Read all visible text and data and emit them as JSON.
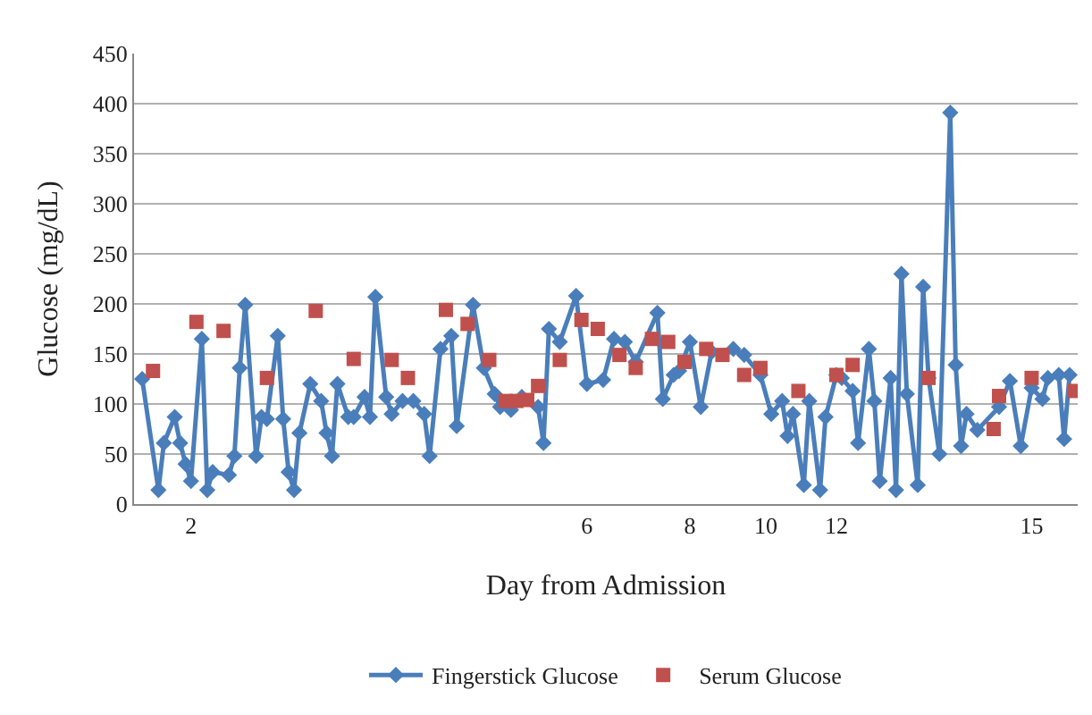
{
  "chart_data": {
    "type": "line",
    "xlabel": "Day from Admission",
    "ylabel": "Glucose (mg/dL)",
    "categories": [
      null,
      null,
      null,
      null,
      null,
      null,
      null,
      null,
      null,
      null,
      "2",
      null,
      null,
      null,
      null,
      null,
      null,
      null,
      null,
      null,
      null,
      null,
      null,
      null,
      null,
      null,
      null,
      null,
      null,
      null,
      null,
      null,
      null,
      null,
      null,
      null,
      null,
      null,
      null,
      null,
      null,
      null,
      null,
      null,
      null,
      null,
      null,
      null,
      null,
      null,
      null,
      null,
      null,
      null,
      null,
      null,
      null,
      null,
      null,
      null,
      null,
      null,
      null,
      null,
      null,
      null,
      null,
      null,
      null,
      null,
      null,
      null,
      null,
      null,
      null,
      null,
      null,
      null,
      null,
      null,
      null,
      null,
      null,
      "6",
      null,
      null,
      null,
      null,
      null,
      null,
      null,
      null,
      null,
      null,
      null,
      null,
      null,
      null,
      null,
      null,
      null,
      null,
      "8",
      null,
      null,
      null,
      null,
      null,
      null,
      null,
      null,
      null,
      null,
      null,
      null,
      null,
      "10",
      null,
      null,
      null,
      null,
      null,
      null,
      null,
      null,
      null,
      null,
      null,
      null,
      "12",
      null,
      null,
      null,
      null,
      null,
      null,
      null,
      null,
      null,
      null,
      null,
      null,
      null,
      null,
      null,
      null,
      null,
      null,
      null,
      null,
      null,
      null,
      null,
      null,
      null,
      null,
      null,
      null,
      null,
      null,
      null,
      null,
      null,
      null,
      null,
      "15",
      null,
      null,
      null,
      null,
      null,
      null,
      null,
      null
    ],
    "series": [
      {
        "name": "Fingerstick Glucose",
        "color": "#4a7ebb",
        "marker": "diamond",
        "values": [
          null,
          125,
          null,
          null,
          14,
          61,
          null,
          87,
          61,
          40,
          23,
          null,
          165,
          14,
          32,
          null,
          null,
          29,
          48,
          136,
          199,
          null,
          48,
          87,
          85,
          null,
          168,
          85,
          32,
          14,
          71,
          null,
          120,
          null,
          103,
          71,
          48,
          120,
          null,
          87,
          87,
          null,
          107,
          87,
          207,
          null,
          107,
          90,
          null,
          103,
          null,
          103,
          null,
          90,
          48,
          null,
          155,
          null,
          168,
          78,
          null,
          null,
          199,
          null,
          136,
          null,
          110,
          97,
          null,
          94,
          null,
          107,
          null,
          null,
          97,
          61,
          175,
          null,
          162,
          null,
          null,
          208,
          null,
          120,
          null,
          null,
          124,
          null,
          165,
          null,
          162,
          null,
          142,
          null,
          null,
          null,
          191,
          105,
          null,
          129,
          133,
          null,
          162,
          null,
          97,
          null,
          152,
          null,
          null,
          null,
          155,
          null,
          149,
          null,
          null,
          129,
          null,
          90,
          null,
          103,
          68,
          90,
          null,
          19,
          103,
          null,
          14,
          87,
          null,
          129,
          126,
          null,
          113,
          61,
          null,
          155,
          103,
          23,
          null,
          126,
          14,
          230,
          110,
          null,
          19,
          217,
          126,
          null,
          50,
          null,
          391,
          139,
          58,
          90,
          null,
          74,
          null,
          null,
          null,
          97,
          null,
          123,
          null,
          58,
          null,
          116,
          null,
          105,
          126,
          null,
          129,
          65,
          129,
          null
        ]
      },
      {
        "name": "Serum Glucose",
        "type": "scatter",
        "color": "#c0504d",
        "marker": "square",
        "values": [
          null,
          null,
          null,
          133,
          null,
          null,
          null,
          null,
          null,
          null,
          null,
          182,
          null,
          null,
          null,
          null,
          173,
          null,
          null,
          null,
          null,
          null,
          null,
          null,
          126,
          null,
          null,
          null,
          null,
          null,
          null,
          null,
          null,
          193,
          null,
          null,
          null,
          null,
          null,
          null,
          145,
          null,
          null,
          null,
          null,
          null,
          null,
          144,
          null,
          null,
          126,
          null,
          null,
          null,
          null,
          null,
          null,
          194,
          null,
          null,
          null,
          180,
          null,
          null,
          null,
          144,
          null,
          null,
          103,
          null,
          103,
          null,
          104,
          null,
          118,
          null,
          null,
          null,
          144,
          null,
          null,
          null,
          184,
          null,
          null,
          175,
          null,
          null,
          null,
          149,
          null,
          null,
          136,
          null,
          null,
          165,
          null,
          null,
          162,
          null,
          null,
          142,
          null,
          null,
          null,
          155,
          null,
          null,
          149,
          null,
          null,
          null,
          129,
          null,
          null,
          136,
          null,
          null,
          null,
          null,
          null,
          null,
          113,
          null,
          null,
          null,
          null,
          null,
          null,
          129,
          null,
          null,
          139,
          null,
          null,
          null,
          null,
          null,
          null,
          null,
          null,
          null,
          null,
          null,
          null,
          null,
          126,
          null,
          null,
          null,
          null,
          null,
          null,
          null,
          null,
          null,
          null,
          null,
          75,
          108,
          null,
          null,
          null,
          null,
          null,
          126,
          null,
          null,
          null,
          null,
          null,
          null,
          null,
          113
        ]
      }
    ],
    "ylim": [
      0,
      450
    ],
    "yticks": [
      0,
      50,
      100,
      150,
      200,
      250,
      300,
      350,
      400,
      450
    ],
    "grid": "y",
    "legend": "bottom"
  }
}
